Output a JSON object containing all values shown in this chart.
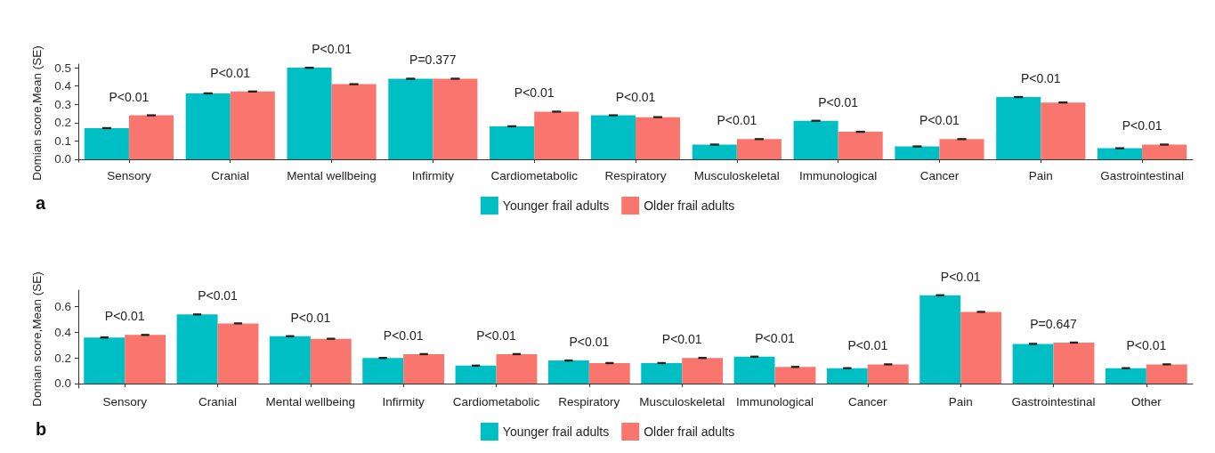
{
  "chart_data": [
    {
      "type": "bar",
      "ylabel": "Domian score,Mean (SE)",
      "categories": [
        "Sensory",
        "Cranial",
        "Mental wellbeing",
        "Infirmity",
        "Cardiometabolic",
        "Respiratory",
        "Musculoskeletal",
        "Immunological",
        "Cancer",
        "Pain",
        "Gastrointestinal"
      ],
      "series": [
        {
          "name": "Younger frail adults",
          "color": "#00bfc4",
          "values": [
            0.17,
            0.36,
            0.5,
            0.44,
            0.18,
            0.24,
            0.08,
            0.21,
            0.07,
            0.34,
            0.06
          ],
          "errors": [
            0.002,
            0.002,
            0.002,
            0.002,
            0.002,
            0.002,
            0.002,
            0.002,
            0.002,
            0.002,
            0.002
          ]
        },
        {
          "name": "Older frail adults",
          "color": "#f8766d",
          "values": [
            0.24,
            0.37,
            0.41,
            0.44,
            0.26,
            0.23,
            0.11,
            0.15,
            0.11,
            0.31,
            0.08
          ],
          "errors": [
            0.002,
            0.002,
            0.002,
            0.002,
            0.002,
            0.002,
            0.002,
            0.002,
            0.002,
            0.002,
            0.002
          ]
        }
      ],
      "ylim": [
        -0.015,
        0.52
      ],
      "yticks": [
        {
          "value": 0,
          "label": "0.0"
        },
        0.1,
        0.2,
        0.3,
        0.4,
        0.5
      ],
      "grid": false,
      "legend": "bottom",
      "annotations": [
        "P<0.01",
        "P<0.01",
        "P<0.01",
        "P=0.377",
        "P<0.01",
        "P<0.01",
        "P<0.01",
        "P<0.01",
        "P<0.01",
        "P<0.01",
        "P<0.01",
        "a"
      ]
    },
    {
      "type": "bar",
      "ylabel": "Domian score,Mean (SE)",
      "categories": [
        "Sensory",
        "Cranial",
        "Mental wellbeing",
        "Infirmity",
        "Cardiometabolic",
        "Respiratory",
        "Musculoskeletal",
        "Immunological",
        "Cancer",
        "Pain",
        "Gastrointestinal",
        "Other"
      ],
      "series": [
        {
          "name": "Younger frail adults",
          "color": "#00bfc4",
          "values": [
            0.36,
            0.54,
            0.37,
            0.2,
            0.14,
            0.18,
            0.16,
            0.21,
            0.12,
            0.69,
            0.31,
            0.12
          ],
          "errors": [
            0.003,
            0.003,
            0.003,
            0.003,
            0.003,
            0.003,
            0.003,
            0.003,
            0.003,
            0.003,
            0.003,
            0.003
          ]
        },
        {
          "name": "Older frail adults",
          "color": "#f8766d",
          "values": [
            0.38,
            0.47,
            0.35,
            0.23,
            0.23,
            0.16,
            0.2,
            0.13,
            0.15,
            0.56,
            0.32,
            0.15
          ],
          "errors": [
            0.003,
            0.003,
            0.003,
            0.003,
            0.003,
            0.003,
            0.003,
            0.003,
            0.003,
            0.003,
            0.003,
            0.003
          ]
        }
      ],
      "ylim": [
        -0.035,
        0.73
      ],
      "yticks": [
        {
          "value": 0,
          "label": "0.0"
        },
        {
          "value": 0.2,
          "label": "0.2"
        },
        {
          "value": 0.4,
          "label": "0.4"
        },
        {
          "value": 0.6,
          "label": "0.6"
        }
      ],
      "grid": false,
      "legend": "bottom",
      "annotations": [
        "P<0.01",
        "P<0.01",
        "P<0.01",
        "P<0.01",
        "P<0.01",
        "P<0.01",
        "P<0.01",
        "P<0.01",
        "P<0.01",
        "P<0.01",
        "P=0.647",
        "P<0.01",
        "b"
      ]
    }
  ]
}
